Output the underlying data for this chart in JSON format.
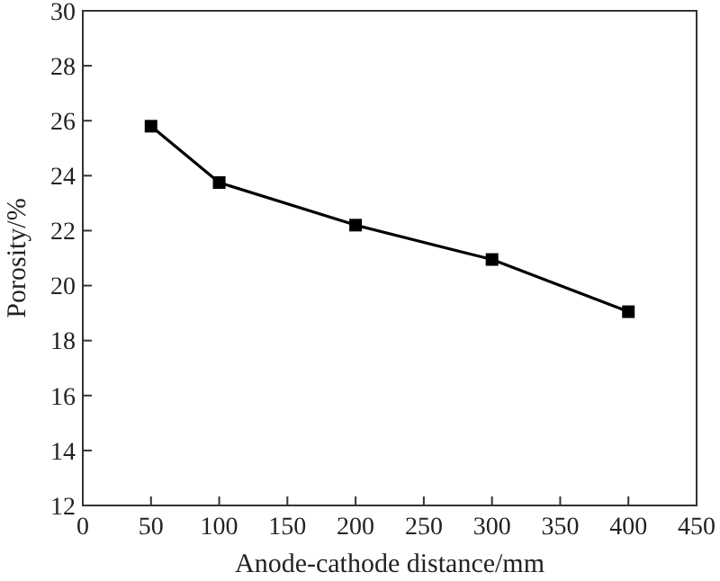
{
  "chart_data": {
    "type": "line",
    "xlabel": "Anode-cathode distance/mm",
    "ylabel": "Porosity/%",
    "x": [
      50,
      100,
      200,
      300,
      400
    ],
    "series": [
      {
        "color": "#000000",
        "values": [
          25.8,
          23.75,
          22.2,
          20.95,
          19.05
        ]
      }
    ],
    "xlim": [
      0,
      450
    ],
    "xticks": [
      0,
      50,
      100,
      150,
      200,
      250,
      300,
      350,
      400,
      450
    ],
    "ylim": [
      12,
      30
    ],
    "yticks": [
      12,
      14,
      16,
      18,
      20,
      22,
      24,
      26,
      28,
      30
    ],
    "marker": "square",
    "line_style": "solid"
  }
}
